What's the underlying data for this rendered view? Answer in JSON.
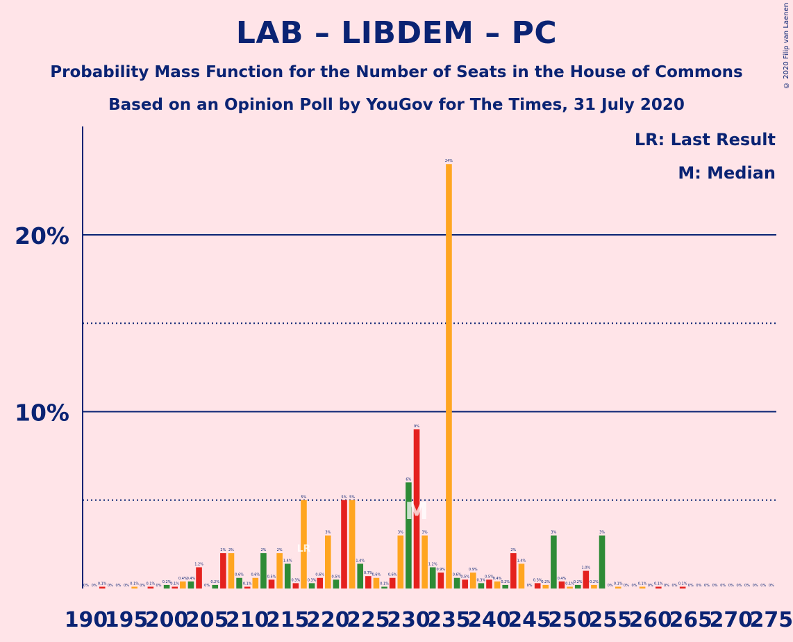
{
  "title": "LAB – LIBDEM – PC",
  "subtitle": "Probability Mass Function for the Number of Seats in the House of Commons",
  "subtitle2": "Based on an Opinion Poll by YouGov for The Times, 31 July 2020",
  "copyright": "© 2020 Filip van Laenen",
  "legend": {
    "last_result": "LR: Last Result",
    "median": "M: Median"
  },
  "colors": {
    "background": "#FFE4E8",
    "text": "#0A2373",
    "red": "#E4211E",
    "orange": "#FFA520",
    "green": "#2E8B36"
  },
  "chart_data": {
    "type": "bar",
    "xlabel": "",
    "ylabel": "",
    "ylim": [
      0,
      26
    ],
    "y_ticks": [
      {
        "value": 10,
        "label": "10%"
      },
      {
        "value": 20,
        "label": "20%"
      }
    ],
    "dotted_lines": [
      5,
      15
    ],
    "x_tick_labels": [
      "190",
      "195",
      "200",
      "205",
      "210",
      "215",
      "220",
      "225",
      "230",
      "235",
      "240",
      "245",
      "250",
      "255",
      "260",
      "265",
      "270",
      "275"
    ],
    "x_start": 190,
    "bar_values": [
      0,
      0,
      0.1,
      0,
      0,
      0,
      0.1,
      0,
      0.1,
      0,
      0.2,
      0.1,
      0.4,
      0.4,
      1.2,
      0,
      0.2,
      2,
      2,
      0.6,
      0.1,
      0.6,
      2,
      0.5,
      2,
      1.4,
      0.3,
      5,
      0.3,
      0.6,
      3,
      0.5,
      5,
      5,
      1.4,
      0.7,
      0.6,
      0.1,
      0.6,
      3,
      6,
      9,
      3,
      1.2,
      0.9,
      24,
      0.6,
      0.5,
      0.9,
      0.3,
      0.5,
      0.4,
      0.2,
      2,
      1.4,
      0,
      0.3,
      0.2,
      3,
      0.4,
      0.1,
      0.2,
      1.0,
      0.2,
      3,
      0,
      0.1,
      0,
      0,
      0.1,
      0,
      0.1,
      0,
      0,
      0.1,
      0,
      0,
      0,
      0,
      0,
      0,
      0,
      0,
      0,
      0,
      0
    ],
    "bar_labels": [
      "0%",
      "0%",
      "0.1%",
      "0%",
      "0%",
      "0%",
      "0.1%",
      "0%",
      "0.1%",
      "0%",
      "0.2%",
      "0.1%",
      "0.4%",
      "0.4%",
      "1.2%",
      "0%",
      "0.2%",
      "2%",
      "2%",
      "0.6%",
      "0.1%",
      "0.6%",
      "2%",
      "0.5%",
      "2%",
      "1.4%",
      "0.3%",
      "5%",
      "0.3%",
      "0.6%",
      "3%",
      "0.5%",
      "5%",
      "5%",
      "1.4%",
      "0.7%",
      "0.6%",
      "0.1%",
      "0.6%",
      "3%",
      "6%",
      "9%",
      "3%",
      "1.2%",
      "0.9%",
      "24%",
      "0.6%",
      "0.5%",
      "0.9%",
      "0.3%",
      "0.5%",
      "0.4%",
      "0.2%",
      "2%",
      "1.4%",
      "0%",
      "0.3%",
      "0.2%",
      "3%",
      "0.4%",
      "0.1%",
      "0.2%",
      "1.0%",
      "0.2%",
      "3%",
      "0%",
      "0.1%",
      "0%",
      "0%",
      "0.1%",
      "0%",
      "0.1%",
      "0%",
      "0%",
      "0.1%",
      "0%",
      "0%",
      "0%",
      "0%",
      "0%",
      "0%",
      "0%",
      "0%",
      "0%",
      "0%",
      "0%"
    ],
    "bar_colors": [
      "orange",
      "green",
      "red",
      "orange",
      "green",
      "red",
      "orange",
      "green",
      "red",
      "orange",
      "green",
      "red",
      "orange",
      "green",
      "red",
      "orange",
      "green",
      "red",
      "orange",
      "green",
      "red",
      "orange",
      "green",
      "red",
      "orange",
      "green",
      "red",
      "orange",
      "green",
      "red",
      "orange",
      "green",
      "red",
      "orange",
      "green",
      "red",
      "orange",
      "green",
      "red",
      "orange",
      "green",
      "red",
      "orange",
      "green",
      "red",
      "orange",
      "green",
      "red",
      "orange",
      "green",
      "red",
      "orange",
      "green",
      "red",
      "orange",
      "green",
      "red",
      "orange",
      "green",
      "red",
      "orange",
      "green",
      "red",
      "orange",
      "green",
      "red",
      "orange",
      "green",
      "red",
      "orange",
      "green",
      "red",
      "orange",
      "green",
      "red",
      "orange",
      "green",
      "red",
      "orange",
      "green",
      "red",
      "orange",
      "green",
      "red",
      "orange",
      "green"
    ],
    "median_seat": 231,
    "median_marker": "M",
    "last_result_seat": 217,
    "last_result_marker": "LR"
  }
}
